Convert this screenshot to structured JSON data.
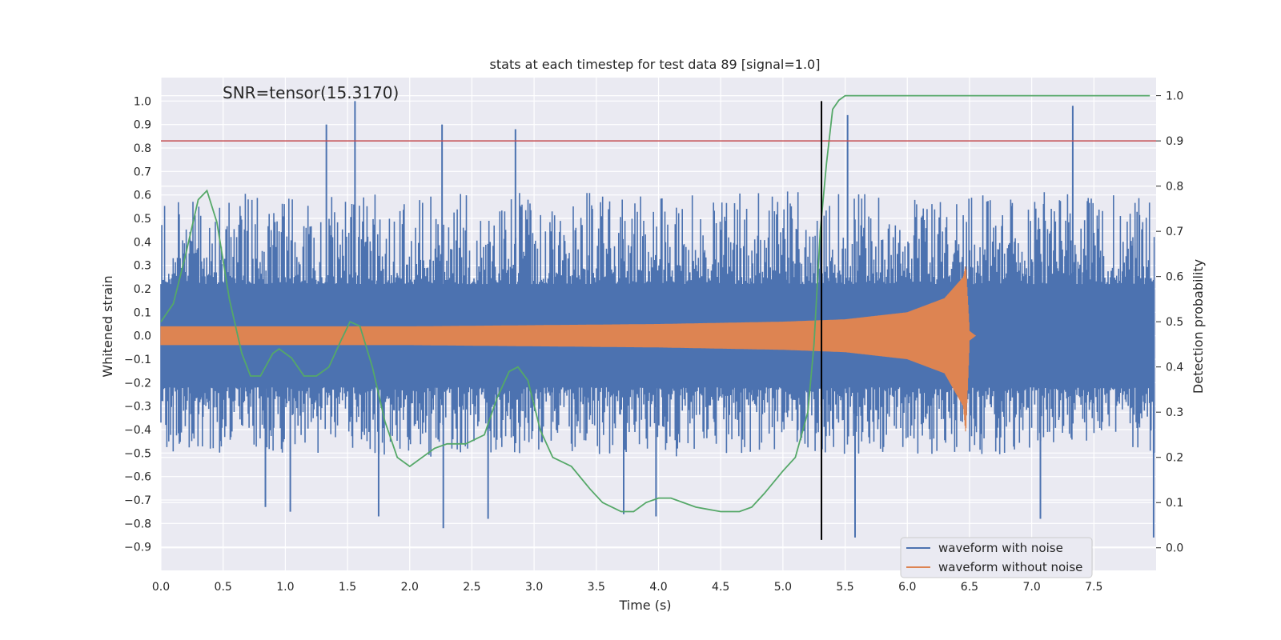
{
  "chart_data": {
    "type": "line",
    "title": "stats at each timestep for test data 89 [signal=1.0]",
    "xlabel": "Time (s)",
    "ylabel": "Whitened strain",
    "y2label": "Detection probability",
    "xlim": [
      0.0,
      8.0
    ],
    "ylim": [
      -1.0,
      1.1
    ],
    "y2lim": [
      -0.05,
      1.04
    ],
    "x_ticks": [
      "0.0",
      "0.5",
      "1.0",
      "1.5",
      "2.0",
      "2.5",
      "3.0",
      "3.5",
      "4.0",
      "4.5",
      "5.0",
      "5.5",
      "6.0",
      "6.5",
      "7.0",
      "7.5"
    ],
    "y_ticks": [
      "1.0",
      "0.9",
      "0.8",
      "0.7",
      "0.6",
      "0.5",
      "0.4",
      "0.3",
      "0.2",
      "0.1",
      "0.0",
      "−0.1",
      "−0.2",
      "−0.3",
      "−0.4",
      "−0.5",
      "−0.6",
      "−0.7",
      "−0.8",
      "−0.9"
    ],
    "y2_ticks": [
      "1.0",
      "0.9",
      "0.8",
      "0.7",
      "0.6",
      "0.5",
      "0.4",
      "0.3",
      "0.2",
      "0.1",
      "0.0"
    ],
    "grid": true,
    "legend_position": "lower-right",
    "annotation": "SNR=tensor(15.3170)",
    "threshold": {
      "axis": "y2",
      "value": 0.9,
      "color": "#c44e52"
    },
    "vline": {
      "x": 5.31,
      "y_from": -0.87,
      "y_to": 1.0,
      "color": "#000000"
    },
    "series": [
      {
        "name": "waveform with noise",
        "color": "#4c72b0",
        "axis": "y",
        "envelope": {
          "x": [
            0.0,
            1.0,
            2.0,
            3.0,
            4.0,
            5.0,
            6.0,
            7.0,
            7.99
          ],
          "upper": [
            0.58,
            0.62,
            0.6,
            0.62,
            0.6,
            0.62,
            0.6,
            0.62,
            0.6
          ],
          "lower": [
            -0.5,
            -0.5,
            -0.52,
            -0.5,
            -0.52,
            -0.5,
            -0.52,
            -0.5,
            -0.5
          ]
        },
        "spikes": [
          {
            "x": 1.33,
            "y": 0.9
          },
          {
            "x": 1.56,
            "y": 1.0
          },
          {
            "x": 2.26,
            "y": 0.9
          },
          {
            "x": 2.85,
            "y": 0.88
          },
          {
            "x": 5.52,
            "y": 0.94
          },
          {
            "x": 7.33,
            "y": 0.98
          },
          {
            "x": 2.27,
            "y": -0.82
          },
          {
            "x": 5.58,
            "y": -0.86
          },
          {
            "x": 7.98,
            "y": -0.86
          },
          {
            "x": 0.84,
            "y": -0.73
          },
          {
            "x": 1.04,
            "y": -0.75
          },
          {
            "x": 1.75,
            "y": -0.77
          },
          {
            "x": 2.63,
            "y": -0.78
          },
          {
            "x": 3.72,
            "y": -0.76
          },
          {
            "x": 3.98,
            "y": -0.77
          },
          {
            "x": 7.07,
            "y": -0.78
          }
        ]
      },
      {
        "name": "waveform without noise",
        "color": "#dd8452",
        "axis": "y",
        "envelope": {
          "x": [
            0.0,
            1.0,
            2.0,
            3.0,
            4.0,
            5.0,
            5.5,
            6.0,
            6.3,
            6.45,
            6.47,
            6.5,
            6.55,
            7.99
          ],
          "upper": [
            0.04,
            0.04,
            0.04,
            0.045,
            0.05,
            0.06,
            0.07,
            0.1,
            0.16,
            0.25,
            0.3,
            0.02,
            0.0,
            0.0
          ],
          "lower": [
            -0.04,
            -0.04,
            -0.04,
            -0.045,
            -0.05,
            -0.06,
            -0.07,
            -0.1,
            -0.16,
            -0.3,
            -0.42,
            -0.02,
            0.0,
            0.0
          ]
        }
      },
      {
        "name": "",
        "color": "#55a868",
        "axis": "y2",
        "x": [
          0.0,
          0.1,
          0.2,
          0.3,
          0.37,
          0.45,
          0.55,
          0.65,
          0.72,
          0.8,
          0.9,
          0.95,
          1.05,
          1.15,
          1.25,
          1.35,
          1.45,
          1.52,
          1.6,
          1.7,
          1.8,
          1.9,
          2.0,
          2.1,
          2.2,
          2.3,
          2.45,
          2.6,
          2.7,
          2.8,
          2.87,
          2.95,
          3.05,
          3.15,
          3.3,
          3.45,
          3.55,
          3.7,
          3.8,
          3.9,
          4.0,
          4.1,
          4.3,
          4.5,
          4.65,
          4.75,
          4.85,
          5.0,
          5.1,
          5.2,
          5.25,
          5.3,
          5.35,
          5.4,
          5.45,
          5.5,
          6.0,
          7.0,
          7.95
        ],
        "values": [
          0.5,
          0.54,
          0.65,
          0.77,
          0.79,
          0.72,
          0.55,
          0.43,
          0.38,
          0.38,
          0.43,
          0.44,
          0.42,
          0.38,
          0.38,
          0.4,
          0.46,
          0.5,
          0.49,
          0.4,
          0.28,
          0.2,
          0.18,
          0.2,
          0.22,
          0.23,
          0.23,
          0.25,
          0.33,
          0.39,
          0.4,
          0.37,
          0.26,
          0.2,
          0.18,
          0.13,
          0.1,
          0.08,
          0.08,
          0.1,
          0.11,
          0.11,
          0.09,
          0.08,
          0.08,
          0.09,
          0.12,
          0.17,
          0.2,
          0.3,
          0.45,
          0.7,
          0.85,
          0.97,
          0.99,
          1.0,
          1.0,
          1.0,
          1.0
        ]
      }
    ]
  }
}
